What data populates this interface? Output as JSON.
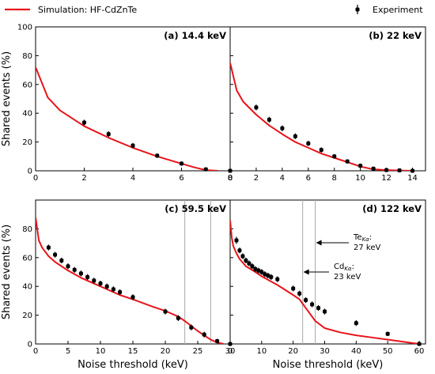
{
  "legend": {
    "simulation_label": "Simulation: HF-CdZnTe",
    "experiment_label": "Experiment",
    "location": "top"
  },
  "colors": {
    "simulation": "#e8141a",
    "experiment": "#000000",
    "marker_line": "#b0b0b0"
  },
  "chart_data": [
    {
      "type": "line",
      "title": "(a) 14.4 keV",
      "xlabel": "",
      "ylabel": "Shared events (%)",
      "xlim": [
        0,
        8
      ],
      "ylim": [
        0,
        100
      ],
      "xticks": [
        0,
        2,
        4,
        6,
        8
      ],
      "yticks": [
        0,
        20,
        40,
        60,
        80,
        100
      ],
      "series": [
        {
          "kind": "line",
          "x": [
            0,
            0.5,
            1,
            2,
            3,
            4,
            5,
            6,
            6.5,
            7,
            7.5
          ],
          "y": [
            72,
            51,
            42,
            31,
            23,
            16,
            10,
            5,
            2.5,
            0.5,
            0
          ]
        },
        {
          "kind": "scatter",
          "x": [
            2,
            3,
            4,
            5,
            6,
            7,
            8
          ],
          "y": [
            33.5,
            25.5,
            17.5,
            10.5,
            5,
            1,
            0
          ],
          "yerr": [
            2,
            2,
            1.8,
            1.5,
            1.5,
            1,
            0.8
          ]
        }
      ]
    },
    {
      "type": "line",
      "title": "(b) 22 keV",
      "xlabel": "",
      "ylabel": "",
      "xlim": [
        0,
        15
      ],
      "ylim": [
        0,
        100
      ],
      "xticks": [
        0,
        2,
        4,
        6,
        8,
        10,
        12,
        14
      ],
      "yticks": [
        0,
        20,
        40,
        60,
        80,
        100
      ],
      "series": [
        {
          "kind": "line",
          "x": [
            0,
            0.5,
            1,
            2,
            3,
            4,
            5,
            6,
            7,
            8,
            9,
            10,
            11,
            12,
            13,
            14
          ],
          "y": [
            75,
            56,
            48,
            39,
            31.5,
            25.5,
            20,
            16,
            12,
            9,
            6,
            3,
            1,
            0.5,
            0.2,
            0
          ]
        },
        {
          "kind": "scatter",
          "x": [
            2,
            3,
            4,
            5,
            6,
            7,
            8,
            9,
            10,
            11,
            12,
            13,
            14
          ],
          "y": [
            44,
            35.5,
            29.5,
            24,
            19,
            14.5,
            10,
            6.5,
            3.5,
            1.5,
            0.5,
            0.3,
            0
          ],
          "yerr": [
            2,
            2,
            2,
            2,
            1.8,
            1.8,
            1.5,
            1.5,
            1.5,
            1,
            0.8,
            0.8,
            0.8
          ]
        }
      ]
    },
    {
      "type": "line",
      "title": "(c) 59.5 keV",
      "xlabel": "Noise threshold (keV)",
      "ylabel": "Shared events (%)",
      "xlim": [
        0,
        30
      ],
      "ylim": [
        0,
        100
      ],
      "xticks": [
        0,
        5,
        10,
        15,
        20,
        25,
        30
      ],
      "yticks": [
        0,
        20,
        40,
        60,
        80
      ],
      "vlines": [
        23,
        27
      ],
      "series": [
        {
          "kind": "line",
          "x": [
            0,
            0.5,
            1,
            2,
            3,
            5,
            7,
            10,
            13,
            15,
            18,
            20,
            22,
            23,
            25,
            27,
            28,
            29
          ],
          "y": [
            88,
            72,
            67,
            61,
            57,
            51,
            46,
            40,
            34,
            31,
            26,
            23,
            19,
            16,
            9,
            3,
            1,
            0
          ]
        },
        {
          "kind": "scatter",
          "x": [
            2,
            3,
            4,
            5,
            6,
            7,
            8,
            9,
            10,
            11,
            12,
            13,
            15,
            20,
            22,
            24,
            26,
            28,
            30
          ],
          "y": [
            67,
            62,
            58,
            54,
            51.5,
            49,
            46.5,
            44,
            42,
            40,
            38,
            36,
            32.5,
            22.5,
            18,
            11.5,
            6.5,
            2,
            0
          ],
          "yerr": [
            2,
            2,
            2,
            2,
            2,
            2,
            2,
            2,
            2,
            2,
            2,
            2,
            2,
            2,
            2,
            2,
            2,
            1.5,
            1
          ]
        }
      ]
    },
    {
      "type": "line",
      "title": "(d) 122 keV",
      "xlabel": "Noise threshold (keV)",
      "ylabel": "",
      "xlim": [
        0,
        62
      ],
      "ylim": [
        0,
        100
      ],
      "xticks": [
        0,
        10,
        20,
        30,
        40,
        50,
        60
      ],
      "yticks": [
        0,
        20,
        40,
        60,
        80
      ],
      "vlines": [
        23,
        27
      ],
      "annotations": [
        {
          "main": "Te",
          "sub": "Kα",
          "suffix": ":",
          "line2": "27 keV",
          "x": 27
        },
        {
          "main": "Cd",
          "sub": "Kα",
          "suffix": ":",
          "line2": "23 keV",
          "x": 23
        }
      ],
      "series": [
        {
          "kind": "line",
          "x": [
            0,
            0.5,
            1,
            2,
            3,
            5,
            8,
            10,
            15,
            20,
            22,
            23,
            25,
            27,
            30,
            35,
            40,
            45,
            50,
            55,
            60
          ],
          "y": [
            86,
            74,
            68,
            63,
            59,
            54,
            50,
            47,
            41,
            34,
            31,
            28,
            22,
            16,
            11,
            8,
            6,
            4.5,
            3,
            1.5,
            0
          ]
        },
        {
          "kind": "scatter",
          "x": [
            2,
            3,
            4,
            5,
            6,
            7,
            8,
            9,
            10,
            11,
            12,
            13,
            15,
            20,
            22,
            24,
            26,
            28,
            30,
            40,
            50,
            60
          ],
          "y": [
            72,
            65,
            61,
            58,
            56,
            54,
            52,
            51,
            50,
            48.5,
            47.5,
            46.5,
            45,
            38.5,
            35,
            30.5,
            27.5,
            25,
            22.5,
            14.5,
            7,
            0
          ],
          "yerr": [
            2.5,
            2,
            2,
            2,
            2,
            2,
            2,
            2,
            2,
            2,
            2,
            2,
            2,
            2,
            2,
            2,
            2,
            2,
            2,
            2,
            1.5,
            1
          ]
        }
      ]
    }
  ]
}
